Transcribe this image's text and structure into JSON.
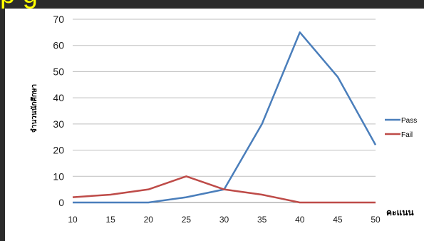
{
  "slide": {
    "title_fragment": "p    g"
  },
  "chart_data": {
    "type": "line",
    "title": "",
    "xlabel": "คะแนน",
    "ylabel": "จำนวนนักศึกษา",
    "categories": [
      "10",
      "15",
      "20",
      "25",
      "30",
      "35",
      "40",
      "45",
      "50"
    ],
    "ylim": [
      0,
      70
    ],
    "yticks": [
      0,
      10,
      20,
      30,
      40,
      50,
      60,
      70
    ],
    "grid": true,
    "legend": "right",
    "series": [
      {
        "name": "Pass",
        "color": "#4a7ebb",
        "values": [
          0,
          0,
          0,
          2,
          5,
          30,
          65,
          48,
          22
        ]
      },
      {
        "name": "Fail",
        "color": "#be4b48",
        "values": [
          2,
          3,
          5,
          10,
          5,
          3,
          0,
          0,
          0
        ]
      }
    ]
  }
}
